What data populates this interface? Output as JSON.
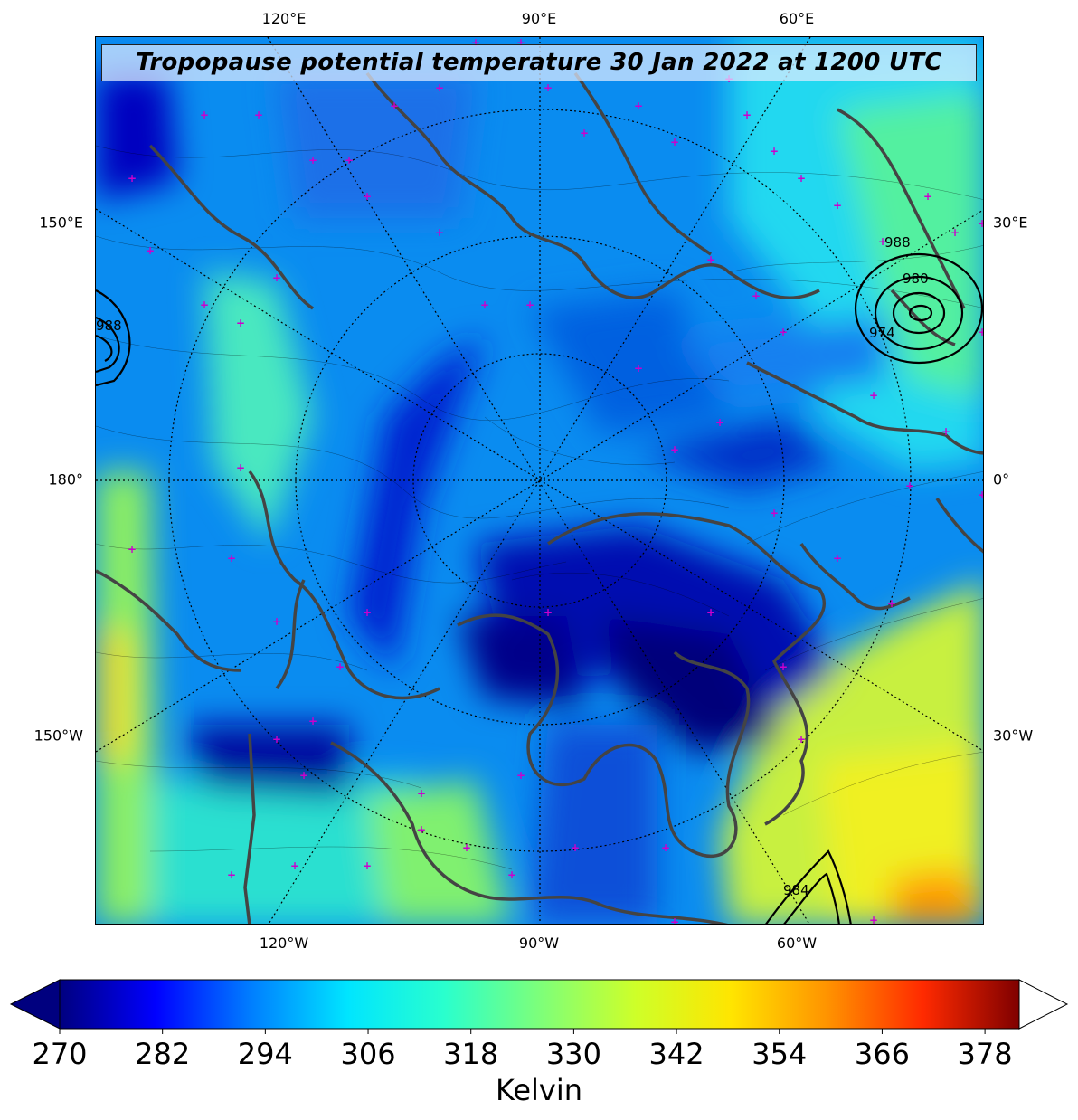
{
  "title": "Tropopause potential temperature 30 Jan 2022 at 1200 UTC",
  "map": {
    "projection": "north-polar-stereographic",
    "field": "tropopause potential temperature",
    "longitude_labels_top": [
      "120°E",
      "90°E",
      "60°E"
    ],
    "longitude_labels_bottom": [
      "120°W",
      "90°W",
      "60°W"
    ],
    "longitude_labels_left": [
      "150°E",
      "180°",
      "150°W"
    ],
    "longitude_labels_right": [
      "30°E",
      "0°",
      "30°W"
    ],
    "pressure_contour_labels": [
      "988",
      "980",
      "974",
      "988",
      "984"
    ],
    "features": [
      "coastlines",
      "lat-lon graticule",
      "sea-level pressure contours",
      "magenta station markers"
    ]
  },
  "colorbar": {
    "unit_label": "Kelvin",
    "ticks": [
      "270",
      "282",
      "294",
      "306",
      "318",
      "330",
      "342",
      "354",
      "366",
      "378"
    ],
    "min": 270,
    "max": 382,
    "extend": "both",
    "colormap": [
      "#00007f",
      "#0000ff",
      "#007fff",
      "#00e5ff",
      "#29ffce",
      "#7dff7a",
      "#ceff29",
      "#ffe500",
      "#ff9300",
      "#ff2a00",
      "#7f0000"
    ]
  },
  "colors": {
    "coastline": "#444444",
    "station_marker": "#cc00cc",
    "pressure_contour": "#000000"
  }
}
